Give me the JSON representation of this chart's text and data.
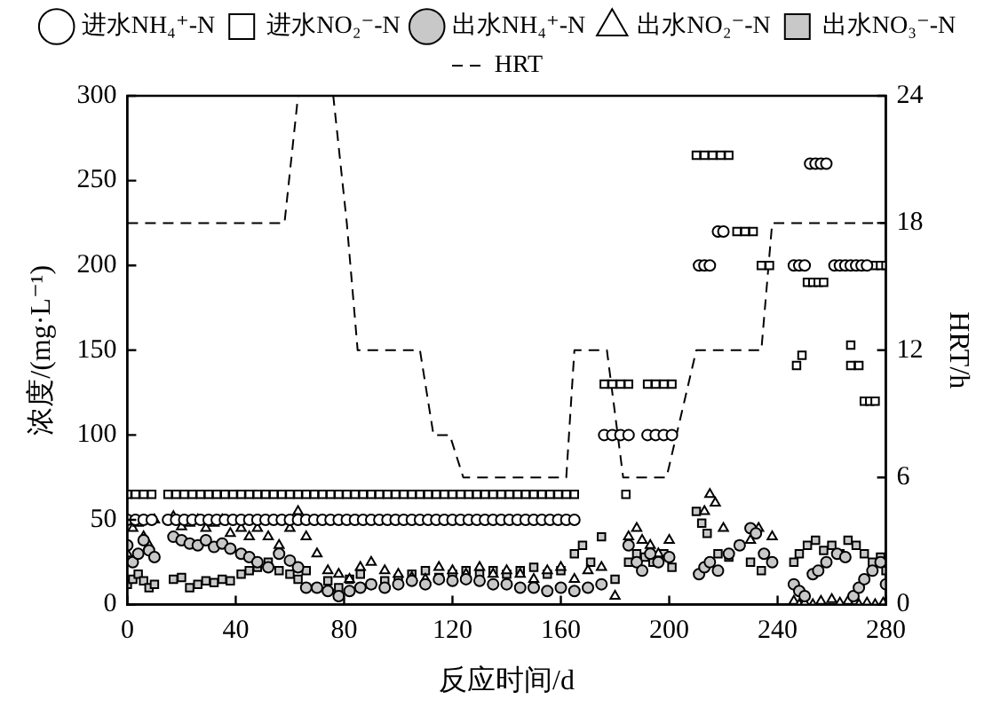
{
  "chart_data": {
    "type": "scatter",
    "xlabel": "反应时间/d",
    "ylabel": "浓度/(mg·L⁻¹)",
    "y2label": "HRT/h",
    "xlim": [
      0,
      280
    ],
    "xticks": [
      0,
      40,
      80,
      120,
      160,
      200,
      240,
      280
    ],
    "ylim": [
      0,
      300
    ],
    "yticks": [
      0,
      50,
      100,
      150,
      200,
      250,
      300
    ],
    "y2lim": [
      0,
      24
    ],
    "y2ticks": [
      0,
      6,
      12,
      18,
      24
    ],
    "grid": false,
    "legend": "top",
    "series": [
      {
        "name": "进水NH₄⁺-N",
        "color": "#ffffff",
        "marker": "circle",
        "x": [
          0,
          3,
          6,
          9,
          15,
          18,
          21,
          24,
          27,
          30,
          33,
          36,
          39,
          42,
          45,
          48,
          51,
          54,
          57,
          60,
          63,
          66,
          69,
          72,
          75,
          78,
          81,
          84,
          87,
          90,
          93,
          96,
          99,
          102,
          105,
          108,
          111,
          114,
          117,
          120,
          123,
          126,
          129,
          132,
          135,
          138,
          141,
          144,
          147,
          150,
          153,
          156,
          159,
          162,
          165,
          176,
          179,
          182,
          185,
          192,
          195,
          198,
          201,
          211,
          213,
          215,
          218,
          220,
          246,
          248,
          250,
          252,
          254,
          256,
          258,
          261,
          263,
          265,
          267,
          269,
          271,
          273
        ],
        "values": [
          50,
          50,
          50,
          50,
          50,
          50,
          50,
          50,
          50,
          50,
          50,
          50,
          50,
          50,
          50,
          50,
          50,
          50,
          50,
          50,
          50,
          50,
          50,
          50,
          50,
          50,
          50,
          50,
          50,
          50,
          50,
          50,
          50,
          50,
          50,
          50,
          50,
          50,
          50,
          50,
          50,
          50,
          50,
          50,
          50,
          50,
          50,
          50,
          50,
          50,
          50,
          50,
          50,
          50,
          50,
          100,
          100,
          100,
          100,
          100,
          100,
          100,
          100,
          200,
          200,
          200,
          220,
          220,
          200,
          200,
          200,
          260,
          260,
          260,
          260,
          200,
          200,
          200,
          200,
          200,
          200,
          200
        ]
      },
      {
        "name": "进水NO₂⁻-N",
        "color": "#ffffff",
        "marker": "square",
        "x": [
          0,
          3,
          6,
          9,
          15,
          18,
          21,
          24,
          27,
          30,
          33,
          36,
          39,
          42,
          45,
          48,
          51,
          54,
          57,
          60,
          63,
          66,
          69,
          72,
          75,
          78,
          81,
          84,
          87,
          90,
          93,
          96,
          99,
          102,
          105,
          108,
          111,
          114,
          117,
          120,
          123,
          126,
          129,
          132,
          135,
          138,
          141,
          144,
          147,
          150,
          153,
          156,
          159,
          162,
          165,
          176,
          179,
          182,
          185,
          184,
          192,
          195,
          198,
          201,
          210,
          213,
          216,
          219,
          222,
          225,
          228,
          231,
          234,
          237,
          247,
          249,
          251,
          253,
          255,
          257,
          267,
          267,
          270,
          272,
          274,
          276,
          276,
          278,
          280
        ],
        "values": [
          65,
          65,
          65,
          65,
          65,
          65,
          65,
          65,
          65,
          65,
          65,
          65,
          65,
          65,
          65,
          65,
          65,
          65,
          65,
          65,
          65,
          65,
          65,
          65,
          65,
          65,
          65,
          65,
          65,
          65,
          65,
          65,
          65,
          65,
          65,
          65,
          65,
          65,
          65,
          65,
          65,
          65,
          65,
          65,
          65,
          65,
          65,
          65,
          65,
          65,
          65,
          65,
          65,
          65,
          65,
          130,
          130,
          130,
          130,
          65,
          130,
          130,
          130,
          130,
          265,
          265,
          265,
          265,
          265,
          220,
          220,
          220,
          200,
          200,
          141,
          147,
          190,
          190,
          190,
          190,
          153,
          141,
          141,
          120,
          120,
          120,
          200,
          200,
          200
        ]
      },
      {
        "name": "出水NH₄⁺-N",
        "color": "#c8c8c8",
        "marker": "circle",
        "x": [
          0,
          2,
          4,
          6,
          8,
          10,
          17,
          20,
          23,
          26,
          29,
          32,
          35,
          38,
          42,
          45,
          48,
          52,
          56,
          60,
          63,
          66,
          70,
          74,
          78,
          82,
          86,
          90,
          95,
          100,
          105,
          110,
          115,
          120,
          125,
          130,
          135,
          140,
          145,
          150,
          155,
          160,
          165,
          170,
          175,
          185,
          188,
          190,
          193,
          196,
          200,
          211,
          213,
          215,
          218,
          222,
          226,
          230,
          232,
          235,
          238,
          246,
          248,
          250,
          253,
          255,
          258,
          262,
          265,
          268,
          270,
          272,
          275,
          278,
          280
        ],
        "values": [
          35,
          25,
          30,
          38,
          32,
          28,
          40,
          38,
          36,
          35,
          38,
          34,
          36,
          33,
          30,
          28,
          25,
          22,
          30,
          26,
          22,
          10,
          10,
          8,
          5,
          8,
          10,
          12,
          10,
          12,
          14,
          12,
          15,
          14,
          15,
          14,
          12,
          12,
          10,
          10,
          8,
          10,
          8,
          10,
          12,
          35,
          25,
          20,
          30,
          25,
          28,
          18,
          22,
          25,
          20,
          30,
          35,
          45,
          42,
          30,
          25,
          12,
          8,
          5,
          18,
          20,
          25,
          30,
          28,
          5,
          10,
          15,
          20,
          25,
          12
        ]
      },
      {
        "name": "出水NO₂⁻-N",
        "color": "#ffffff",
        "marker": "triangle",
        "x": [
          0,
          2,
          4,
          6,
          8,
          10,
          17,
          20,
          23,
          26,
          29,
          32,
          35,
          38,
          42,
          45,
          48,
          52,
          56,
          60,
          63,
          66,
          70,
          74,
          78,
          82,
          86,
          90,
          95,
          100,
          105,
          110,
          115,
          120,
          125,
          130,
          135,
          140,
          145,
          150,
          155,
          160,
          165,
          170,
          175,
          180,
          185,
          188,
          190,
          193,
          196,
          200,
          213,
          215,
          217,
          220,
          230,
          233,
          238,
          246,
          248,
          250,
          253,
          256,
          260,
          263,
          266,
          270,
          273,
          276,
          279
        ],
        "values": [
          30,
          45,
          48,
          40,
          35,
          50,
          52,
          46,
          48,
          50,
          45,
          48,
          50,
          42,
          45,
          40,
          45,
          40,
          35,
          45,
          55,
          40,
          30,
          20,
          18,
          15,
          22,
          25,
          20,
          18,
          16,
          15,
          22,
          20,
          18,
          22,
          18,
          20,
          18,
          15,
          20,
          22,
          15,
          20,
          22,
          5,
          40,
          45,
          38,
          35,
          30,
          38,
          55,
          65,
          60,
          45,
          38,
          45,
          40,
          2,
          0,
          1,
          0,
          2,
          3,
          1,
          2,
          0,
          1,
          0,
          1
        ]
      },
      {
        "name": "出水NO₃⁻-N",
        "color": "#c8c8c8",
        "marker": "square",
        "x": [
          0,
          2,
          4,
          6,
          8,
          10,
          17,
          20,
          23,
          26,
          29,
          32,
          35,
          38,
          42,
          45,
          48,
          52,
          56,
          60,
          63,
          66,
          70,
          74,
          78,
          82,
          86,
          90,
          95,
          100,
          105,
          110,
          115,
          120,
          125,
          130,
          135,
          140,
          145,
          150,
          155,
          160,
          165,
          168,
          171,
          175,
          180,
          185,
          188,
          191,
          194,
          198,
          201,
          210,
          212,
          214,
          218,
          222,
          226,
          230,
          234,
          246,
          248,
          251,
          254,
          257,
          260,
          263,
          266,
          269,
          272,
          275,
          278,
          280
        ],
        "values": [
          12,
          15,
          18,
          14,
          10,
          12,
          15,
          16,
          10,
          12,
          14,
          13,
          15,
          14,
          18,
          20,
          22,
          25,
          20,
          18,
          15,
          20,
          10,
          14,
          10,
          15,
          18,
          12,
          14,
          15,
          18,
          20,
          16,
          18,
          20,
          18,
          20,
          18,
          20,
          22,
          18,
          20,
          30,
          35,
          25,
          40,
          15,
          25,
          30,
          28,
          25,
          30,
          22,
          55,
          48,
          42,
          30,
          28,
          35,
          25,
          20,
          25,
          30,
          35,
          38,
          32,
          35,
          30,
          38,
          35,
          30,
          25,
          28,
          20
        ]
      },
      {
        "name": "HRT",
        "type": "line",
        "axis": "y2",
        "color": "#000000",
        "marker": "none",
        "line_style": "dashed",
        "x": [
          0,
          58,
          63,
          76,
          81,
          85,
          108,
          113,
          119,
          124,
          162,
          165,
          177,
          183,
          199,
          210,
          234,
          238,
          280
        ],
        "values": [
          18,
          18,
          24,
          24,
          18,
          12,
          12,
          8,
          8,
          6,
          6,
          12,
          12,
          6,
          6,
          12,
          12,
          18,
          18
        ]
      }
    ]
  }
}
